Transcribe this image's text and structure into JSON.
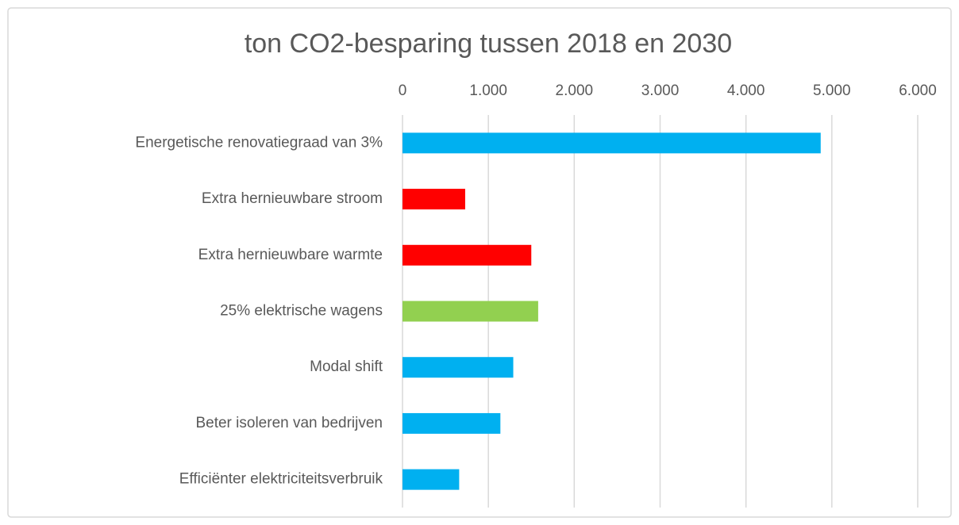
{
  "chart_data": {
    "type": "hbar",
    "title": "ton CO2-besparing tussen 2018 en 2030",
    "categories": [
      "Energetische renovatiegraad van 3%",
      "Extra hernieuwbare stroom",
      "Extra hernieuwbare warmte",
      "25% elektrische wagens",
      "Modal shift",
      "Beter isoleren van bedrijven",
      "Efficiënter elektriciteitsverbruik"
    ],
    "values": [
      4870,
      730,
      1500,
      1580,
      1290,
      1140,
      660
    ],
    "colors": [
      "#00b0f0",
      "#ff0000",
      "#ff0000",
      "#92d050",
      "#00b0f0",
      "#00b0f0",
      "#00b0f0"
    ],
    "xlim": [
      0,
      6000
    ],
    "xticks": [
      0,
      {
        "value": 1000,
        "label": "1.000"
      },
      {
        "value": 2000,
        "label": "2.000"
      },
      {
        "value": 3000,
        "label": "3.000"
      },
      {
        "value": 4000,
        "label": "4.000"
      },
      {
        "value": 5000,
        "label": "5.000"
      },
      {
        "value": 6000,
        "label": "6.000"
      }
    ],
    "grid": true
  }
}
